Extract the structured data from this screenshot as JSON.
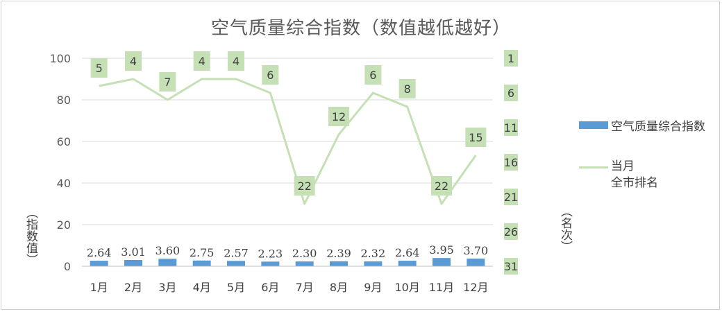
{
  "chart_data": {
    "type": "bar",
    "title": "空气质量综合指数（数值越低越好）",
    "categories": [
      "1月",
      "2月",
      "3月",
      "4月",
      "5月",
      "6月",
      "7月",
      "8月",
      "9月",
      "10月",
      "11月",
      "12月"
    ],
    "series": [
      {
        "name": "空气质量综合指数",
        "type": "bar",
        "axis": "left",
        "values": [
          2.64,
          3.01,
          3.6,
          2.75,
          2.57,
          2.23,
          2.3,
          2.39,
          2.32,
          2.64,
          3.95,
          3.7
        ],
        "labels": [
          "2.64",
          "3.01",
          "3.60",
          "2.75",
          "2.57",
          "2.23",
          "2.30",
          "2.39",
          "2.32",
          "2.64",
          "3.95",
          "3.70"
        ],
        "color": "#5b9bd5"
      },
      {
        "name": "当月全市排名",
        "legend_lines": [
          "当月",
          "全市排名"
        ],
        "type": "line",
        "axis": "right",
        "values": [
          5,
          4,
          7,
          4,
          4,
          6,
          22,
          12,
          6,
          8,
          22,
          15
        ],
        "labels": [
          "5",
          "4",
          "7",
          "4",
          "4",
          "6",
          "22",
          "12",
          "6",
          "8",
          "22",
          "15"
        ],
        "color": "#c5e0b4"
      }
    ],
    "y_left": {
      "label": "（指数值）",
      "min": 0,
      "max": 100,
      "ticks": [
        "0",
        "20",
        "40",
        "60",
        "80",
        "100"
      ]
    },
    "y_right": {
      "label": "（名次）",
      "min": 1,
      "max": 31,
      "reversed": true,
      "ticks": [
        "1",
        "6",
        "11",
        "16",
        "21",
        "26",
        "31"
      ]
    },
    "grid": true,
    "legend_position": "right"
  }
}
